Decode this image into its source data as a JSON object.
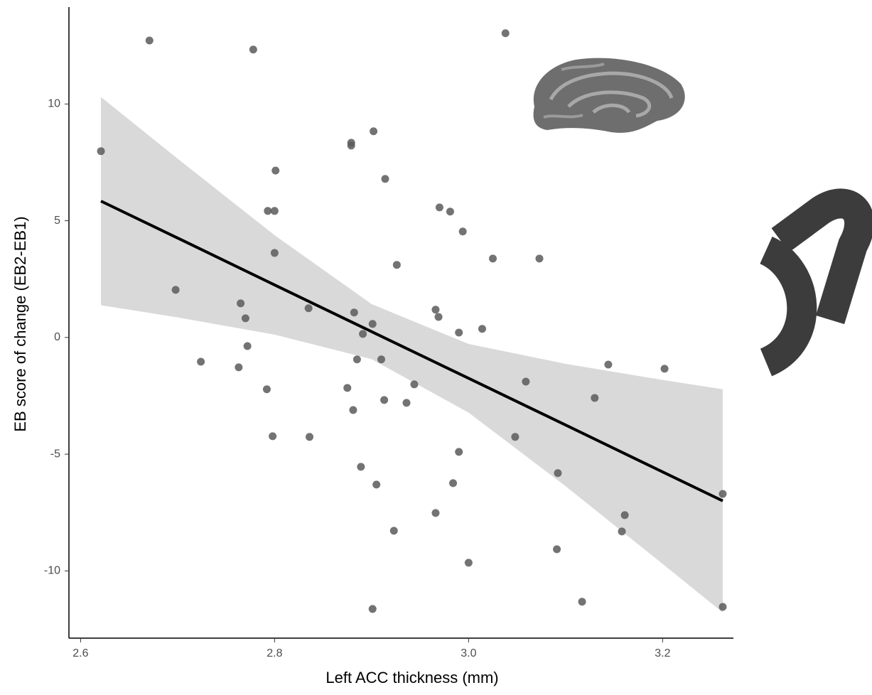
{
  "chart_data": {
    "type": "scatter",
    "x_label": "Left ACC thickness (mm)",
    "y_label": "EB score of change (EB2-EB1)",
    "xlim": [
      2.588,
      3.273
    ],
    "ylim": [
      -12.88,
      14.15
    ],
    "xticks": [
      2.6,
      2.8,
      {
        "value": 3,
        "label": "3.0"
      },
      3.2
    ],
    "yticks": [
      -10,
      -5,
      0,
      5,
      10
    ],
    "color": "#5a5a5a",
    "x": [
      2.621,
      2.671,
      2.778,
      3.038,
      2.879,
      2.879,
      2.902,
      2.801,
      2.914,
      2.793,
      2.8,
      2.97,
      2.981,
      2.994,
      2.8,
      2.926,
      3.025,
      3.073,
      2.698,
      2.765,
      2.77,
      2.835,
      2.882,
      2.966,
      2.969,
      2.901,
      2.891,
      2.99,
      3.014,
      2.772,
      2.724,
      2.763,
      2.885,
      2.91,
      2.792,
      2.875,
      2.944,
      2.881,
      2.913,
      2.936,
      3.059,
      3.144,
      3.202,
      3.13,
      2.798,
      2.836,
      3.048,
      2.99,
      2.889,
      3.092,
      2.905,
      2.984,
      3.262,
      2.966,
      3.161,
      2.923,
      3.158,
      3.091,
      3.0,
      2.901,
      3.117,
      3.262
    ],
    "values": [
      7.98,
      12.72,
      12.33,
      13.03,
      8.34,
      8.22,
      8.83,
      7.15,
      6.79,
      5.42,
      5.42,
      5.57,
      5.39,
      4.54,
      3.62,
      3.11,
      3.38,
      3.38,
      2.04,
      1.46,
      0.82,
      1.25,
      1.07,
      1.19,
      0.88,
      0.58,
      0.15,
      0.21,
      0.37,
      -0.37,
      -1.04,
      -1.28,
      -0.94,
      -0.94,
      -2.22,
      -2.16,
      -2.01,
      -3.11,
      -2.68,
      -2.8,
      -1.89,
      -1.16,
      -1.34,
      -2.59,
      -4.23,
      -4.26,
      -4.26,
      -4.9,
      -5.54,
      -5.81,
      -6.3,
      -6.24,
      -6.7,
      -7.52,
      -7.61,
      -8.28,
      -8.31,
      -9.07,
      -9.65,
      -11.63,
      -11.32,
      -11.54
    ],
    "fit": {
      "color": "#000000",
      "band_color": "#d9d9d9",
      "x": [
        2.621,
        2.7,
        2.8,
        2.9,
        3.0,
        3.1,
        3.2,
        3.262
      ],
      "values": [
        5.84,
        4.26,
        2.25,
        0.25,
        -1.75,
        -3.75,
        -5.76,
        -7.0
      ],
      "lower": [
        1.38,
        0.86,
        0.12,
        -0.93,
        -3.22,
        -6.37,
        -9.7,
        -11.78
      ],
      "upper": [
        10.3,
        7.66,
        4.38,
        1.43,
        -0.28,
        -1.13,
        -1.82,
        -2.22
      ]
    }
  }
}
